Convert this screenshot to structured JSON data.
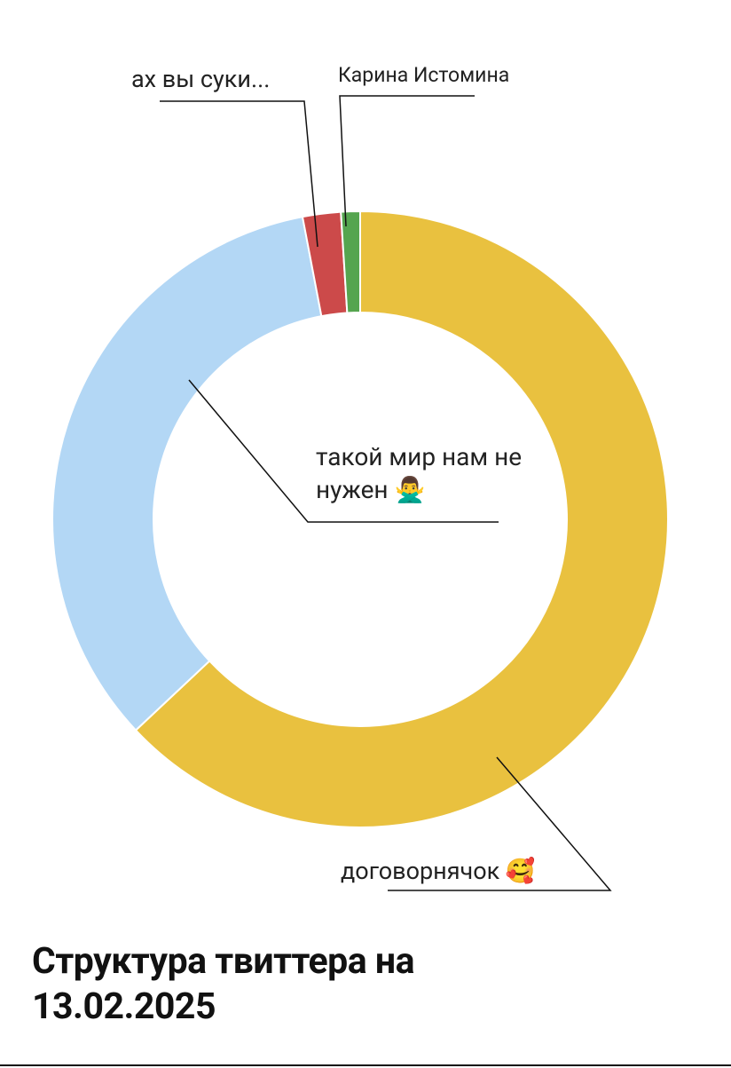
{
  "chart_data": {
    "type": "donut",
    "title": "Структура твиттера на 13.02.2025",
    "categories": [
      "договорнячок 🥰",
      "такой мир нам не нужен 🙅‍♂️",
      "ах вы суки...",
      "Карина Истомина"
    ],
    "values": [
      63,
      34,
      2,
      1
    ],
    "colors": [
      "#e9c13f",
      "#b3d7f5",
      "#cc4a4a",
      "#55a54f"
    ]
  }
}
